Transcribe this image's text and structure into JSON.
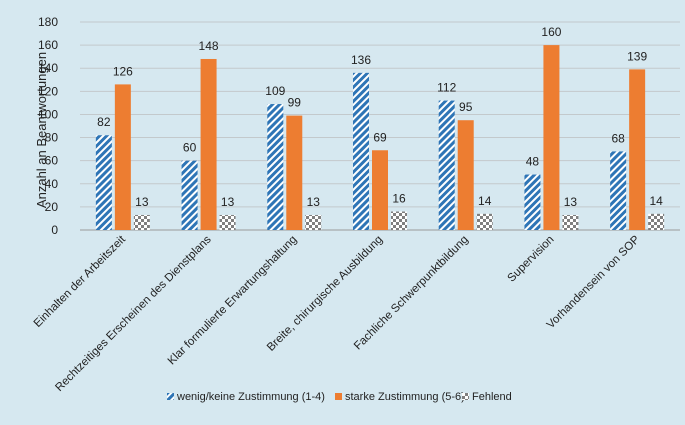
{
  "chart_data": {
    "type": "bar",
    "ylabel": "Anzahl an Beantwortungen",
    "xlabel": "",
    "ylim": [
      0,
      180
    ],
    "yticks": [
      0,
      20,
      40,
      60,
      80,
      100,
      120,
      140,
      160,
      180
    ],
    "grid": true,
    "legend_position": "bottom",
    "categories": [
      "Einhalten der Arbeitszeit",
      "Rechtzeitiges Erscheinen des Dienstplans",
      "Klar formulierte Erwartungshaltung",
      "Breite, chirurgische Ausbildung",
      "Fachliche Schwerpunktbildung",
      "Supervision",
      "Vorhandensein von SOP"
    ],
    "series": [
      {
        "name": "wenig/keine Zustimmung (1-4)",
        "values": [
          82,
          60,
          109,
          136,
          112,
          48,
          68
        ],
        "color": "#2e75b6",
        "pattern": "diagonal-stripes"
      },
      {
        "name": "starke Zustimmung (5-6)",
        "values": [
          126,
          148,
          99,
          69,
          95,
          160,
          139
        ],
        "color": "#ed7d31",
        "pattern": "solid"
      },
      {
        "name": "Fehlend",
        "values": [
          13,
          13,
          13,
          16,
          14,
          13,
          14
        ],
        "color": "#7f7f7f",
        "pattern": "checkerboard"
      }
    ]
  }
}
